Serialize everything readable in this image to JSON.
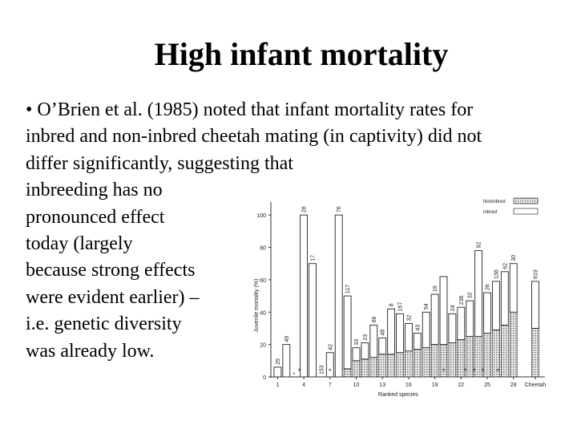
{
  "slide": {
    "title": "High infant mortality",
    "lines": [
      "• O’Brien et al. (1985) noted that infant mortality rates for",
      "inbred and non-inbred cheetah mating (in captivity) did not",
      "differ significantly,  suggesting that",
      "inbreeding has no",
      "pronounced effect",
      "today (largely",
      "because strong effects",
      "were evident earlier) –",
      "i.e. genetic diversity",
      "was already low."
    ]
  },
  "chart_data": {
    "type": "bar",
    "xlabel": "Ranked species",
    "ylabel": "Juvenile mortality (%)",
    "ylim": [
      0,
      108
    ],
    "y_ticks": [
      0,
      20,
      40,
      60,
      80,
      100
    ],
    "x_tick_labels": [
      {
        "label": "1",
        "pos": 1
      },
      {
        "label": "4",
        "pos": 4
      },
      {
        "label": "7",
        "pos": 7
      },
      {
        "label": "10",
        "pos": 10
      },
      {
        "label": "13",
        "pos": 13
      },
      {
        "label": "16",
        "pos": 16
      },
      {
        "label": "19",
        "pos": 19
      },
      {
        "label": "22",
        "pos": 22
      },
      {
        "label": "25",
        "pos": 25
      },
      {
        "label": "28",
        "pos": 28
      },
      {
        "label": "Cheetah",
        "pos": 30.5
      }
    ],
    "legend": {
      "entries": [
        "Noninbred",
        "Inbred"
      ],
      "placement": "top-right"
    },
    "series": [
      {
        "name": "Noninbred",
        "values": [
          0,
          0,
          0,
          0,
          0,
          0,
          0,
          0,
          5,
          10,
          11,
          12,
          14,
          14,
          15,
          16,
          17,
          18,
          20,
          20,
          21,
          23,
          25,
          25,
          27,
          29,
          32,
          40,
          30
        ]
      },
      {
        "name": "Inbred",
        "values": [
          6,
          20,
          0,
          100,
          70,
          0,
          15,
          100,
          45,
          8,
          10,
          20,
          10,
          28,
          24,
          17,
          10,
          22,
          31,
          42,
          18,
          20,
          22,
          53,
          25,
          30,
          33,
          30,
          29
        ]
      }
    ],
    "bar_labels": [
      {
        "pos": 1,
        "label": "25"
      },
      {
        "pos": 2,
        "label": "49"
      },
      {
        "pos": 3,
        "label": "*"
      },
      {
        "pos": 4,
        "label": "28"
      },
      {
        "pos": 5,
        "label": "17"
      },
      {
        "pos": 6,
        "label": "153"
      },
      {
        "pos": 7,
        "label": "42"
      },
      {
        "pos": 8,
        "label": "76"
      },
      {
        "pos": 9,
        "label": "117"
      },
      {
        "pos": 10,
        "label": "33"
      },
      {
        "pos": 11,
        "label": "23"
      },
      {
        "pos": 12,
        "label": "66"
      },
      {
        "pos": 13,
        "label": "48"
      },
      {
        "pos": 14,
        "label": "8"
      },
      {
        "pos": 15,
        "label": "167"
      },
      {
        "pos": 16,
        "label": "32"
      },
      {
        "pos": 17,
        "label": "43"
      },
      {
        "pos": 18,
        "label": "54"
      },
      {
        "pos": 19,
        "label": "19"
      },
      {
        "pos": 21,
        "label": "24"
      },
      {
        "pos": 22,
        "label": "236"
      },
      {
        "pos": 23,
        "label": "32"
      },
      {
        "pos": 24,
        "label": "92"
      },
      {
        "pos": 25,
        "label": "26"
      },
      {
        "pos": 26,
        "label": "138"
      },
      {
        "pos": 27,
        "label": "62"
      },
      {
        "pos": 28,
        "label": "30"
      },
      {
        "pos": 30.5,
        "label": "619"
      }
    ],
    "significance_markers": [
      3.5,
      7,
      20,
      22.5,
      23.5,
      24.5,
      26.2
    ]
  }
}
